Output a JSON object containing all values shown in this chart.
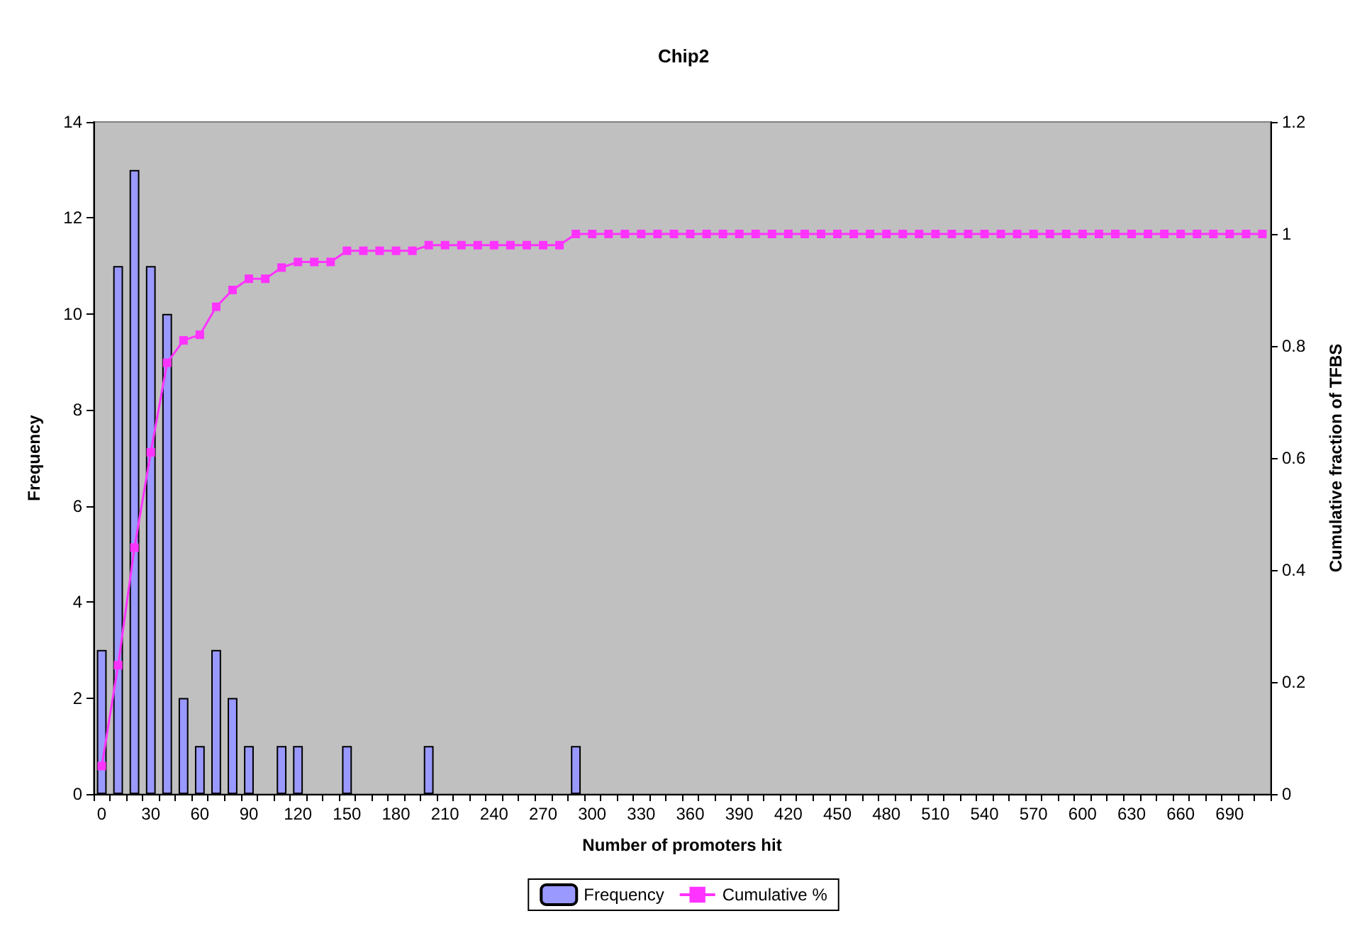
{
  "chart_data": {
    "type": "bar",
    "title": "Chip2",
    "xlabel": "Number of promoters hit",
    "ylabel": "Frequency",
    "y2label": "Cumulative fraction of TFBS",
    "categories": [
      "0",
      null,
      null,
      "30",
      null,
      null,
      "60",
      null,
      null,
      "90",
      null,
      null,
      "120",
      null,
      null,
      "150",
      null,
      null,
      "180",
      null,
      null,
      "210",
      null,
      null,
      "240",
      null,
      null,
      "270",
      null,
      null,
      "300",
      null,
      null,
      "330",
      null,
      null,
      "360",
      null,
      null,
      "390",
      null,
      null,
      "420",
      null,
      null,
      "450",
      null,
      null,
      "480",
      null,
      null,
      "510",
      null,
      null,
      "540",
      null,
      null,
      "570",
      null,
      null,
      "600",
      null,
      null,
      "630",
      null,
      null,
      "660",
      null,
      null,
      "690",
      null,
      null
    ],
    "series": [
      {
        "name": "Frequency",
        "color": "#9999ff",
        "values": [
          3,
          11,
          13,
          11,
          10,
          2,
          1,
          3,
          2,
          1,
          0,
          1,
          1,
          0,
          0,
          1,
          0,
          0,
          0,
          0,
          1,
          0,
          0,
          0,
          0,
          0,
          0,
          0,
          0,
          1,
          0,
          0,
          0,
          0,
          0,
          0,
          0,
          0,
          0,
          0,
          0,
          0,
          0,
          0,
          0,
          0,
          0,
          0,
          0,
          0,
          0,
          0,
          0,
          0,
          0,
          0,
          0,
          0,
          0,
          0,
          0,
          0,
          0,
          0,
          0,
          0,
          0,
          0,
          0,
          0,
          0,
          0
        ]
      },
      {
        "name": "Cumulative %",
        "type": "line",
        "axis": "y2",
        "color": "#ff33ff",
        "values": [
          0.05,
          0.23,
          0.44,
          0.61,
          0.77,
          0.81,
          0.82,
          0.87,
          0.9,
          0.92,
          0.92,
          0.94,
          0.95,
          0.95,
          0.95,
          0.97,
          0.97,
          0.97,
          0.97,
          0.97,
          0.98,
          0.98,
          0.98,
          0.98,
          0.98,
          0.98,
          0.98,
          0.98,
          0.98,
          1,
          1,
          1,
          1,
          1,
          1,
          1,
          1,
          1,
          1,
          1,
          1,
          1,
          1,
          1,
          1,
          1,
          1,
          1,
          1,
          1,
          1,
          1,
          1,
          1,
          1,
          1,
          1,
          1,
          1,
          1,
          1,
          1,
          1,
          1,
          1,
          1,
          1,
          1,
          1,
          1,
          1,
          1
        ]
      }
    ],
    "ylim": [
      0,
      14
    ],
    "yticks": [
      0,
      2,
      4,
      6,
      8,
      10,
      12,
      14
    ],
    "y2lim": [
      0,
      1.2
    ],
    "y2ticks": [
      0,
      0.2,
      0.4,
      0.6,
      0.8,
      1,
      1.2
    ],
    "grid": false,
    "legend": "bottom",
    "marker": "square",
    "line_style": "solid"
  }
}
